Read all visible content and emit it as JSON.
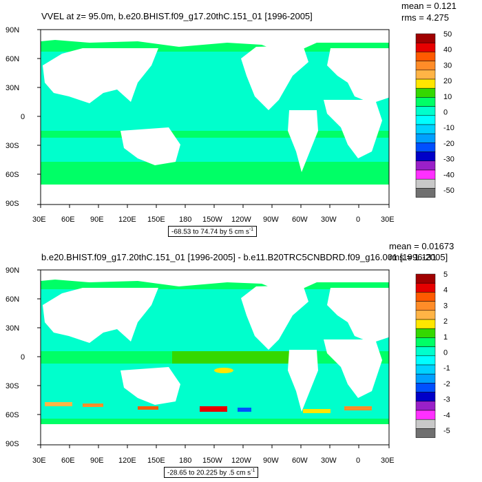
{
  "panels": [
    {
      "title": "VVEL at z=  95.0m, b.e20.BHIST.f09_g17.20thC.151_01 [1996-2005]",
      "stats": {
        "mean": "mean = 0.121",
        "rms": "rms = 4.275"
      },
      "range_label": {
        "text": "-68.53 to 74.74 by 5 cm s",
        "unit_exp": "-1"
      },
      "colorbar_labels": [
        "50",
        "40",
        "30",
        "20",
        "10",
        "0",
        "-10",
        "-20",
        "-30",
        "-40",
        "-50"
      ]
    },
    {
      "title": "b.e20.BHIST.f09_g17.20thC.151_01 [1996-2005] - b.e11.B20TRC5CNBDRD.f09_g16.001 [1996-2005]",
      "stats": {
        "mean": "mean = 0.01673",
        "rms": "rms = 1.131"
      },
      "range_label": {
        "text": "-28.65 to 20.225 by .5 cm s",
        "unit_exp": "-1"
      },
      "colorbar_labels": [
        "5",
        "4",
        "3",
        "2",
        "1",
        "0",
        "-1",
        "-2",
        "-3",
        "-4",
        "-5"
      ]
    }
  ],
  "axes": {
    "lat_labels": [
      "90N",
      "60N",
      "30N",
      "0",
      "30S",
      "60S",
      "90S"
    ],
    "lon_labels": [
      "30E",
      "60E",
      "90E",
      "120E",
      "150E",
      "180",
      "150W",
      "120W",
      "90W",
      "60W",
      "30W",
      "0",
      "30E"
    ]
  },
  "colors": {
    "ocean_base": "#00ff66",
    "ocean_light": "#00ffcc",
    "land": "#ffffff",
    "colorbar": [
      "#a00000",
      "#e60000",
      "#ff5a00",
      "#ff8c28",
      "#ffb446",
      "#ffe600",
      "#34d800",
      "#00ff66",
      "#00ffcc",
      "#00ffff",
      "#00d2ff",
      "#00a0ff",
      "#0050ff",
      "#0000c8",
      "#9a20c8",
      "#ff30ff",
      "#c8c8c8",
      "#707070"
    ]
  }
}
